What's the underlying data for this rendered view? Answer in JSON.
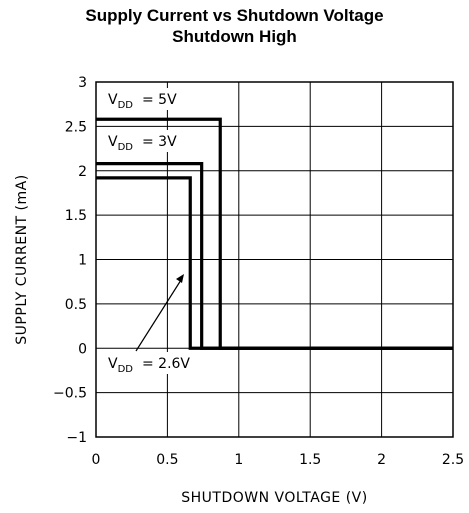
{
  "chart_data": {
    "type": "line",
    "title": "Supply Current vs Shutdown Voltage",
    "subtitle": "Shutdown High",
    "xlabel": "SHUTDOWN VOLTAGE (V)",
    "ylabel": "SUPPLY CURRENT (mA)",
    "xlim": [
      0,
      2.5
    ],
    "ylim": [
      -1,
      3
    ],
    "x_ticks": [
      0,
      0.5,
      1,
      1.5,
      2,
      2.5
    ],
    "x_tick_labels": [
      "0",
      "0.5",
      "1",
      "1.5",
      "2",
      "2.5"
    ],
    "y_ticks": [
      -1,
      -0.5,
      0,
      0.5,
      1,
      1.5,
      2,
      2.5,
      3
    ],
    "y_tick_labels": [
      "−1",
      "−0.5",
      "0",
      "0.5",
      "1",
      "1.5",
      "2",
      "2.5",
      "3"
    ],
    "grid": true,
    "series": [
      {
        "name": "VDD = 5V",
        "x": [
          0,
          0.87,
          0.87,
          2.5
        ],
        "y": [
          2.58,
          2.58,
          0,
          0
        ]
      },
      {
        "name": "VDD = 3V",
        "x": [
          0,
          0.74,
          0.74,
          2.5
        ],
        "y": [
          2.08,
          2.08,
          0,
          0
        ]
      },
      {
        "name": "VDD = 2.6V",
        "x": [
          0,
          0.66,
          0.66,
          2.5
        ],
        "y": [
          1.92,
          1.92,
          0,
          0
        ]
      }
    ],
    "annotations": [
      {
        "label_main": "V",
        "label_sub": "DD",
        "label_rest": "= 5V"
      },
      {
        "label_main": "V",
        "label_sub": "DD",
        "label_rest": "= 3V"
      },
      {
        "label_main": "V",
        "label_sub": "DD",
        "label_rest": "= 2.6V"
      }
    ]
  }
}
